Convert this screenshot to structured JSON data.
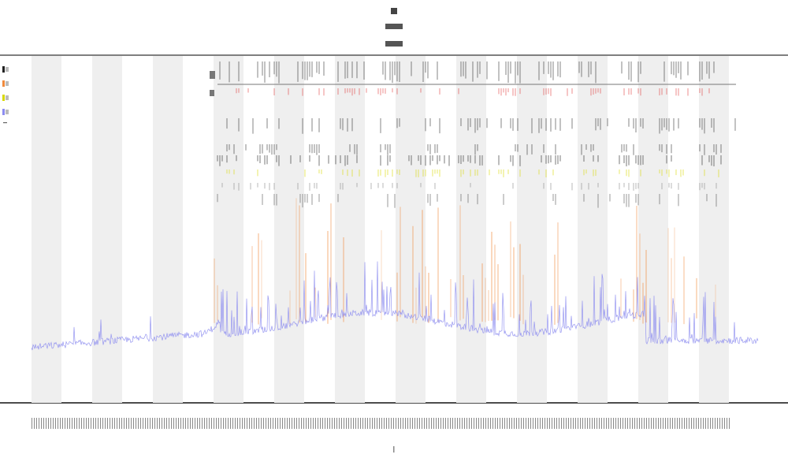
{
  "chart_data": {
    "type": "line",
    "title": "",
    "xlabel": "",
    "ylabel": "",
    "grid": false,
    "legend_position": "top-left",
    "background_bands": "alternating-gray",
    "series": [
      {
        "name": "",
        "color": "#8c8cf0",
        "role": "signal"
      },
      {
        "name": "",
        "color": "#f08a3c",
        "role": "event-spikes"
      },
      {
        "name": "",
        "color": "#222222",
        "role": "raster"
      },
      {
        "name": "",
        "color": "#d8d800",
        "role": "raster"
      },
      {
        "name": "",
        "color": "#e04040",
        "role": "raster"
      }
    ],
    "baseline_level": 0.16,
    "peak_level": 0.55
  }
}
